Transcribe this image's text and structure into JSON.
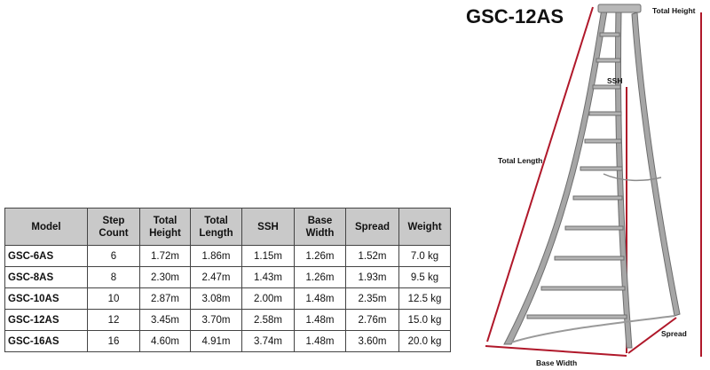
{
  "diagram": {
    "title": "GSC-12AS",
    "labels": {
      "total_height": "Total Height",
      "ssh": "SSH",
      "total_length": "Total Length",
      "spread": "Spread",
      "base_width": "Base Width"
    },
    "colors": {
      "measure_line": "#b0182a",
      "ladder_frame": "#a6a6a6",
      "ladder_edge": "#6e6e6e"
    }
  },
  "spec_table": {
    "headers": {
      "model": "Model",
      "step_count": [
        "Step",
        "Count"
      ],
      "total_height": [
        "Total",
        "Height"
      ],
      "total_length": [
        "Total",
        "Length"
      ],
      "ssh": "SSH",
      "base_width": [
        "Base",
        "Width"
      ],
      "spread": "Spread",
      "weight": "Weight"
    },
    "rows": [
      {
        "model": "GSC-6AS",
        "step_count": "6",
        "total_height": "1.72m",
        "total_length": "1.86m",
        "ssh": "1.15m",
        "base_width": "1.26m",
        "spread": "1.52m",
        "weight": "7.0 kg"
      },
      {
        "model": "GSC-8AS",
        "step_count": "8",
        "total_height": "2.30m",
        "total_length": "2.47m",
        "ssh": "1.43m",
        "base_width": "1.26m",
        "spread": "1.93m",
        "weight": "9.5 kg"
      },
      {
        "model": "GSC-10AS",
        "step_count": "10",
        "total_height": "2.87m",
        "total_length": "3.08m",
        "ssh": "2.00m",
        "base_width": "1.48m",
        "spread": "2.35m",
        "weight": "12.5 kg"
      },
      {
        "model": "GSC-12AS",
        "step_count": "12",
        "total_height": "3.45m",
        "total_length": "3.70m",
        "ssh": "2.58m",
        "base_width": "1.48m",
        "spread": "2.76m",
        "weight": "15.0 kg"
      },
      {
        "model": "GSC-16AS",
        "step_count": "16",
        "total_height": "4.60m",
        "total_length": "4.91m",
        "ssh": "3.74m",
        "base_width": "1.48m",
        "spread": "3.60m",
        "weight": "20.0 kg"
      }
    ]
  }
}
